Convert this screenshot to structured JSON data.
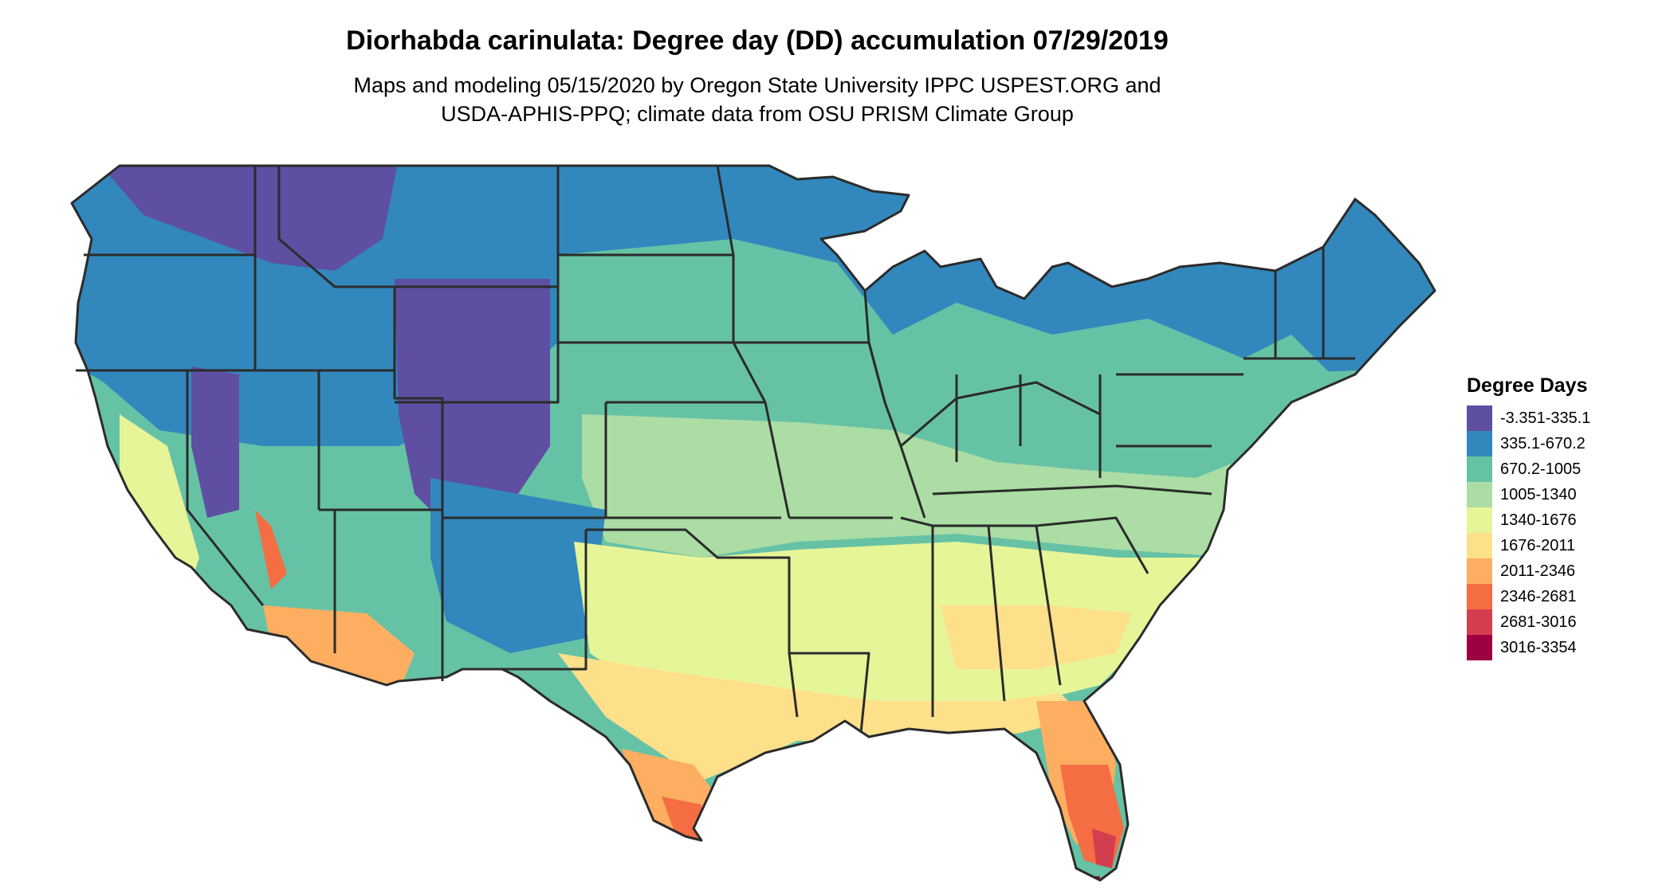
{
  "title": "Diorhabda carinulata: Degree day (DD) accumulation 07/29/2019",
  "subtitle_line1": "Maps and modeling 05/15/2020 by Oregon State University IPPC USPEST.ORG and",
  "subtitle_line2": "USDA-APHIS-PPQ; climate data from OSU PRISM Climate Group",
  "legend": {
    "title": "Degree Days",
    "items": [
      {
        "label": "-3.351-335.1",
        "color": "#5E4FA2"
      },
      {
        "label": "335.1-670.2",
        "color": "#3288BD"
      },
      {
        "label": "670.2-1005",
        "color": "#66C2A5"
      },
      {
        "label": "1005-1340",
        "color": "#ABDDA4"
      },
      {
        "label": "1340-1676",
        "color": "#E6F598"
      },
      {
        "label": "1676-2011",
        "color": "#FEE08B"
      },
      {
        "label": "2011-2346",
        "color": "#FDAE61"
      },
      {
        "label": "2346-2681",
        "color": "#F46D43"
      },
      {
        "label": "2681-3016",
        "color": "#D53E4F"
      },
      {
        "label": "3016-3354",
        "color": "#9E0142"
      }
    ]
  },
  "colors": {
    "border": "#2b2b2b"
  }
}
